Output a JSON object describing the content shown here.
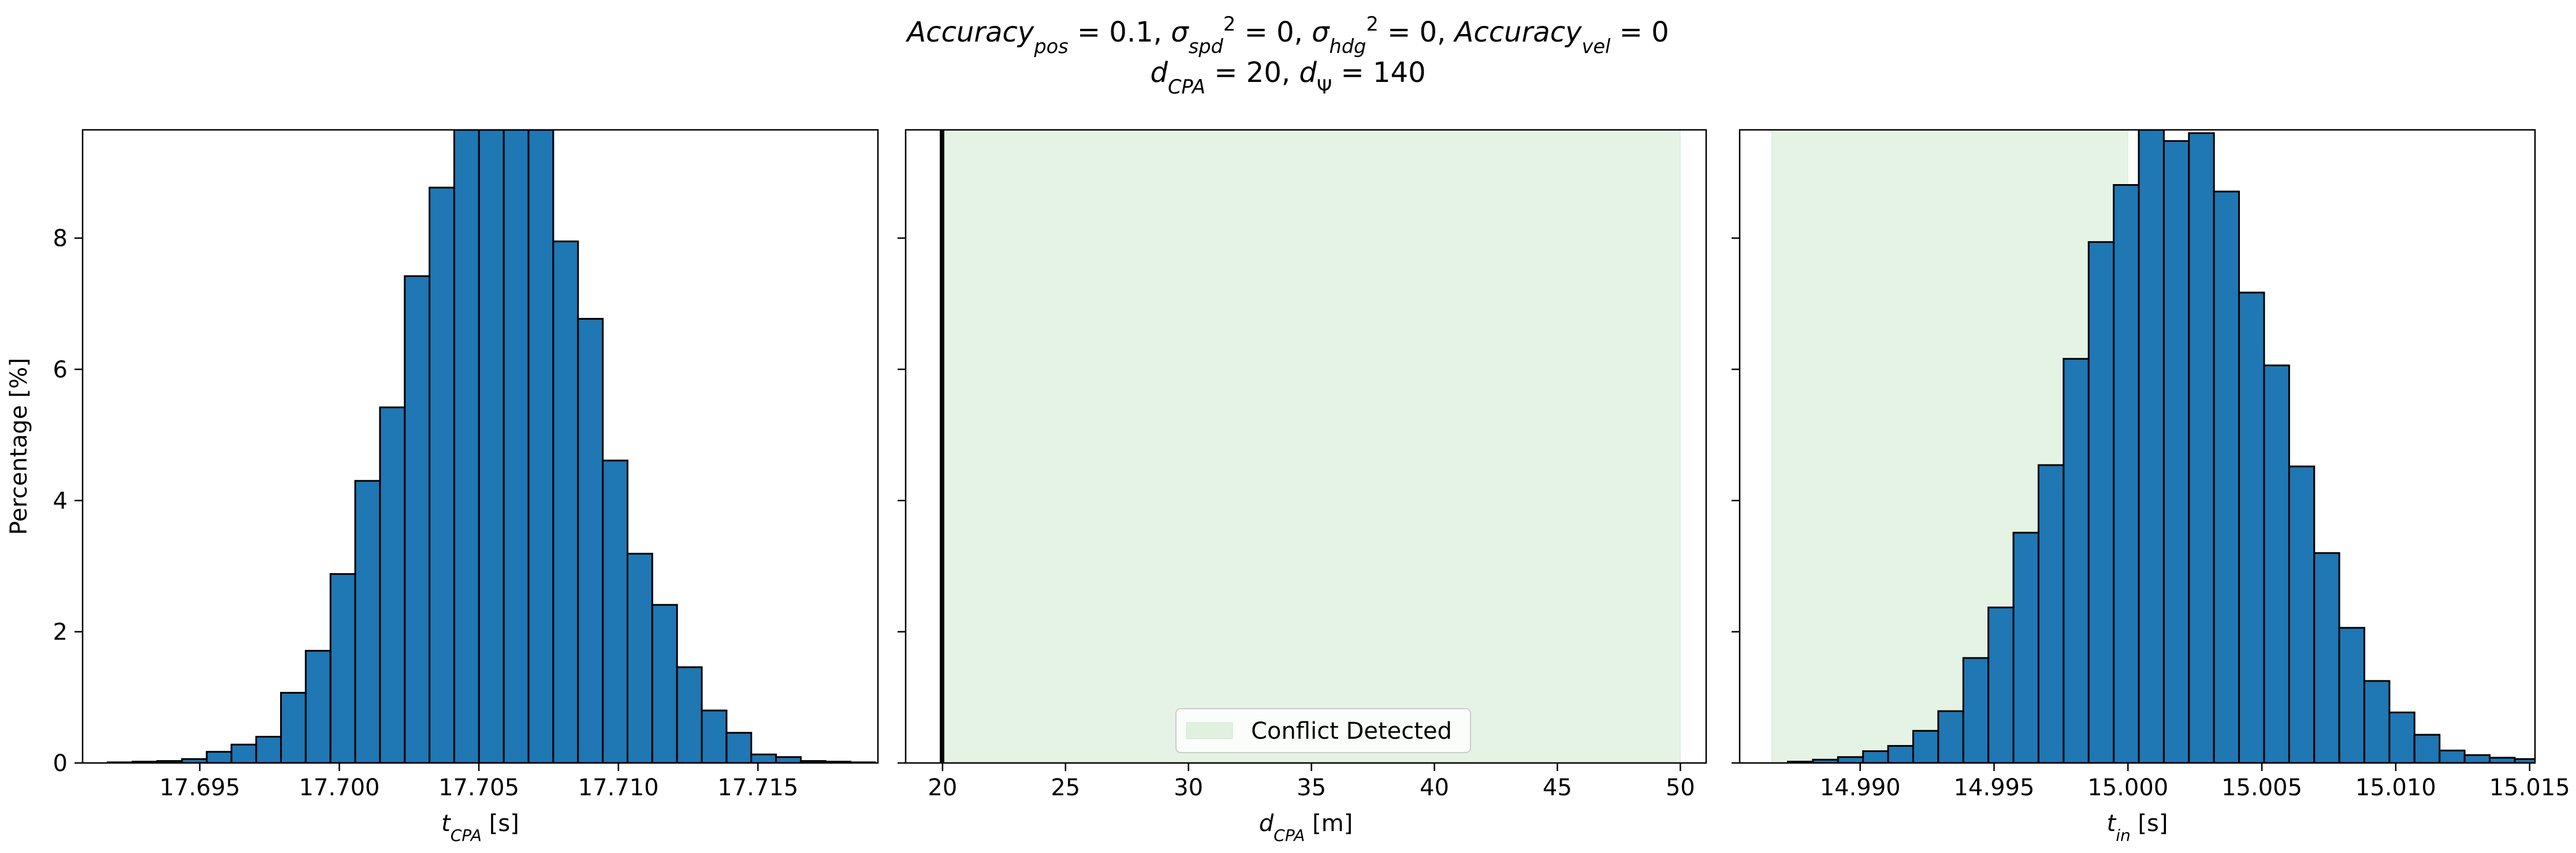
{
  "figure": {
    "title_line1_parts": [
      {
        "t": "Accuracy",
        "s": "normal",
        "i": true
      },
      {
        "t": "pos",
        "s": "sub",
        "i": true
      },
      {
        "t": " = 0.1, ",
        "s": "normal",
        "i": false
      },
      {
        "t": "σ",
        "s": "normal",
        "i": true
      },
      {
        "t": "spd",
        "s": "sub",
        "i": true
      },
      {
        "t": "2",
        "s": "sup",
        "i": false
      },
      {
        "t": " = 0, ",
        "s": "normal",
        "i": false
      },
      {
        "t": "σ",
        "s": "normal",
        "i": true
      },
      {
        "t": "hdg",
        "s": "sub",
        "i": true
      },
      {
        "t": "2",
        "s": "sup",
        "i": false
      },
      {
        "t": " = 0, ",
        "s": "normal",
        "i": false
      },
      {
        "t": "Accuracy",
        "s": "normal",
        "i": true
      },
      {
        "t": "vel",
        "s": "sub",
        "i": true
      },
      {
        "t": " = 0",
        "s": "normal",
        "i": false
      }
    ],
    "title_line2_parts": [
      {
        "t": "d",
        "s": "normal",
        "i": true
      },
      {
        "t": "CPA",
        "s": "sub",
        "i": true
      },
      {
        "t": " = 20, ",
        "s": "normal",
        "i": false
      },
      {
        "t": "d",
        "s": "normal",
        "i": true
      },
      {
        "t": "Ψ",
        "s": "sub",
        "i": false
      },
      {
        "t": " = 140",
        "s": "normal",
        "i": false
      }
    ]
  },
  "chart_data": [
    {
      "type": "bar",
      "ylabel": "Percentage [%]",
      "xlabel_parts": [
        {
          "t": "t",
          "s": "normal",
          "i": true
        },
        {
          "t": "CPA",
          "s": "sub",
          "i": true
        },
        {
          "t": " [s]",
          "s": "normal",
          "i": false
        }
      ],
      "xlim": [
        17.6908,
        17.7193
      ],
      "ylim": [
        0,
        9.65
      ],
      "xticks": [
        17.695,
        17.7,
        17.705,
        17.71,
        17.715
      ],
      "xtick_labels": [
        "17.695",
        "17.700",
        "17.705",
        "17.710",
        "17.715"
      ],
      "yticks": [
        0,
        2,
        4,
        6,
        8
      ],
      "ytick_labels": [
        "0",
        "2",
        "4",
        "6",
        "8"
      ],
      "bar_color": "#1f77b4",
      "bins_start": 17.6917,
      "bin_width": 0.000887,
      "values": [
        0.01,
        0.02,
        0.03,
        0.06,
        0.17,
        0.28,
        0.4,
        1.07,
        1.71,
        2.88,
        4.3,
        5.42,
        7.42,
        8.77,
        9.65,
        9.65,
        9.65,
        9.65,
        7.95,
        6.77,
        4.61,
        3.19,
        2.41,
        1.46,
        0.8,
        0.46,
        0.13,
        0.09,
        0.03,
        0.02,
        0.01
      ]
    },
    {
      "type": "bar",
      "ylabel": "",
      "xlabel_parts": [
        {
          "t": "d",
          "s": "normal",
          "i": true
        },
        {
          "t": "CPA",
          "s": "sub",
          "i": true
        },
        {
          "t": " [m]",
          "s": "normal",
          "i": false
        }
      ],
      "xlim": [
        18.5,
        51.05
      ],
      "ylim": [
        0,
        9.65
      ],
      "xticks": [
        20,
        25,
        30,
        35,
        40,
        45,
        50
      ],
      "xtick_labels": [
        "20",
        "25",
        "30",
        "35",
        "40",
        "45",
        "50"
      ],
      "yticks": [
        0,
        2,
        4,
        6,
        8
      ],
      "ytick_labels": [
        "",
        "",
        "",
        "",
        ""
      ],
      "bar_color": "#1f77b4",
      "values_note_free": true,
      "spike_x": 19.98,
      "spike_width": 0.09,
      "spike_height": 9.65,
      "shaded_region": {
        "from": 20.05,
        "to": 50.0,
        "color": "#2ca02c",
        "alpha": 0.12
      },
      "legend": {
        "label": "Conflict Detected",
        "placement": "lower-center"
      }
    },
    {
      "type": "bar",
      "ylabel": "",
      "xlabel_parts": [
        {
          "t": "t",
          "s": "normal",
          "i": true
        },
        {
          "t": "in",
          "s": "sub",
          "i": true
        },
        {
          "t": " [s]",
          "s": "normal",
          "i": false
        }
      ],
      "xlim": [
        14.9855,
        15.0152
      ],
      "ylim": [
        0,
        9.65
      ],
      "xticks": [
        14.99,
        14.995,
        15.0,
        15.005,
        15.01,
        15.015
      ],
      "xtick_labels": [
        "14.990",
        "14.995",
        "15.000",
        "15.005",
        "15.010",
        "15.015"
      ],
      "yticks": [
        0,
        2,
        4,
        6,
        8
      ],
      "ytick_labels": [
        "",
        "",
        "",
        "",
        ""
      ],
      "bar_color": "#1f77b4",
      "shaded_region": {
        "from": 14.9867,
        "to": 15.0,
        "color": "#2ca02c",
        "alpha": 0.12
      },
      "bins_start": 14.9873,
      "bin_width": 0.000936,
      "values": [
        0.02,
        0.05,
        0.09,
        0.18,
        0.26,
        0.49,
        0.79,
        1.6,
        2.37,
        3.51,
        4.54,
        6.16,
        7.94,
        8.81,
        9.65,
        9.48,
        9.6,
        8.71,
        7.17,
        6.06,
        4.52,
        3.2,
        2.06,
        1.25,
        0.77,
        0.43,
        0.19,
        0.12,
        0.08,
        0.06,
        0.04
      ]
    }
  ]
}
